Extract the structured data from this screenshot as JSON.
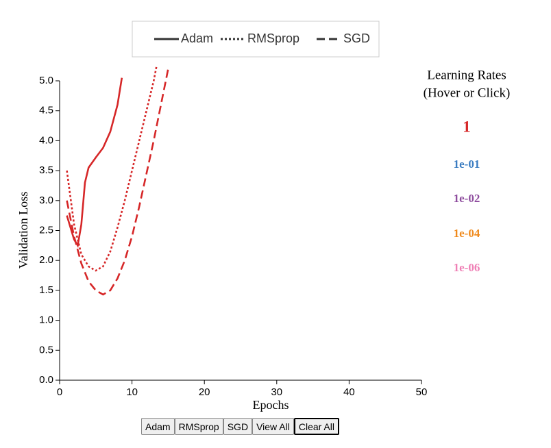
{
  "chart_data": {
    "type": "line",
    "x_label": "Epochs",
    "y_label": "Validation Loss",
    "xlim": [
      0,
      50
    ],
    "xticks": [
      0,
      10,
      20,
      30,
      40,
      50
    ],
    "ylim": [
      0,
      5
    ],
    "yticks": [
      {
        "value": 0,
        "label": "0.0"
      },
      {
        "value": 0.5,
        "label": "0.5"
      },
      {
        "value": 1,
        "label": "1.0"
      },
      {
        "value": 1.5,
        "label": "1.5"
      },
      {
        "value": 2,
        "label": "2.0"
      },
      {
        "value": 2.5,
        "label": "2.5"
      },
      {
        "value": 3,
        "label": "3.0"
      },
      {
        "value": 3.5,
        "label": "3.5"
      },
      {
        "value": 4,
        "label": "4.0"
      },
      {
        "value": 4.5,
        "label": "4.5"
      },
      {
        "value": 5,
        "label": "5.0"
      }
    ],
    "grid": false,
    "series": [
      {
        "name": "Adam",
        "color": "#d62728",
        "dash": "solid",
        "x": [
          1,
          2,
          2.5,
          3,
          3.5,
          4,
          5,
          6,
          7,
          8,
          8.6
        ],
        "values": [
          2.75,
          2.35,
          2.25,
          2.6,
          3.3,
          3.55,
          3.72,
          3.88,
          4.15,
          4.6,
          5.05
        ]
      },
      {
        "name": "RMSprop",
        "color": "#d62728",
        "dash": "dotted",
        "x": [
          1,
          2,
          3,
          4,
          5,
          6,
          7,
          8,
          9,
          10,
          11,
          12,
          13,
          13.4
        ],
        "values": [
          3.5,
          2.6,
          2.1,
          1.9,
          1.83,
          1.9,
          2.15,
          2.55,
          3.0,
          3.5,
          4.0,
          4.5,
          5.0,
          5.25
        ]
      },
      {
        "name": "SGD",
        "color": "#d62728",
        "dash": "dashed",
        "x": [
          1,
          2,
          3,
          4,
          5,
          6,
          7,
          8,
          9,
          10,
          11,
          12,
          13,
          14,
          15
        ],
        "values": [
          3.0,
          2.4,
          1.95,
          1.65,
          1.5,
          1.43,
          1.5,
          1.7,
          2.0,
          2.4,
          2.9,
          3.45,
          4.0,
          4.6,
          5.2
        ]
      }
    ],
    "learning_rates": {
      "title": "Learning Rates",
      "subtitle": "(Hover or Click)",
      "items": [
        {
          "label": "1",
          "color": "#d62728"
        },
        {
          "label": "1e-01",
          "color": "#3a7cc1"
        },
        {
          "label": "1e-02",
          "color": "#8e4c9e"
        },
        {
          "label": "1e-04",
          "color": "#f08a1c"
        },
        {
          "label": "1e-06",
          "color": "#ef7fb5"
        }
      ]
    },
    "buttons": [
      "Adam",
      "RMSprop",
      "SGD",
      "View All",
      "Clear All"
    ]
  }
}
